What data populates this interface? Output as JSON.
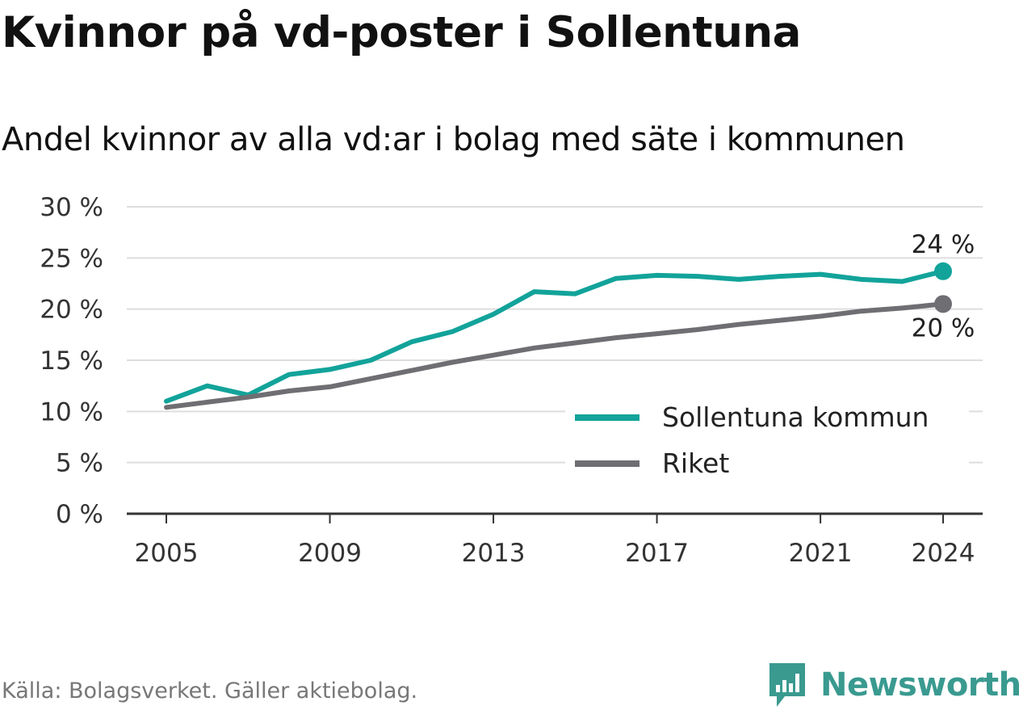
{
  "title": "Kvinnor på vd-poster i Sollentuna",
  "subtitle": "Andel kvinnor av alla vd:ar i bolag med säte i kommunen",
  "source": "Källa: Bolagsverket. Gäller aktiebolag.",
  "brand": {
    "name": "Newsworthy",
    "icon": "newsworthy-logo-icon",
    "color": "#3a9a90"
  },
  "chart_data": {
    "type": "line",
    "title": "Kvinnor på vd-poster i Sollentuna",
    "subtitle": "Andel kvinnor av alla vd:ar i bolag med säte i kommunen",
    "x": [
      2005,
      2006,
      2007,
      2008,
      2009,
      2010,
      2011,
      2012,
      2013,
      2014,
      2015,
      2016,
      2017,
      2018,
      2019,
      2020,
      2021,
      2022,
      2023,
      2024
    ],
    "xlim": [
      2004,
      2025
    ],
    "xticks": [
      2005,
      2009,
      2013,
      2017,
      2021,
      2024
    ],
    "ylim": [
      0,
      30
    ],
    "yticks": [
      0,
      5,
      10,
      15,
      20,
      25,
      30
    ],
    "ytick_labels": [
      "0 %",
      "5 %",
      "10 %",
      "15 %",
      "20 %",
      "25 %",
      "30 %"
    ],
    "grid": true,
    "legend_position": "bottom-right",
    "series": [
      {
        "name": "Sollentuna kommun",
        "color": "#12a39a",
        "values": [
          11.0,
          12.5,
          11.6,
          13.6,
          14.1,
          15.0,
          16.8,
          17.8,
          19.5,
          21.7,
          21.5,
          23.0,
          23.3,
          23.2,
          22.9,
          23.2,
          23.4,
          22.9,
          22.7,
          23.7
        ],
        "end_label": "24 %"
      },
      {
        "name": "Riket",
        "color": "#6e6e73",
        "values": [
          10.4,
          10.9,
          11.4,
          12.0,
          12.4,
          13.2,
          14.0,
          14.8,
          15.5,
          16.2,
          16.7,
          17.2,
          17.6,
          18.0,
          18.5,
          18.9,
          19.3,
          19.8,
          20.1,
          20.5
        ],
        "end_label": "20 %"
      }
    ]
  }
}
